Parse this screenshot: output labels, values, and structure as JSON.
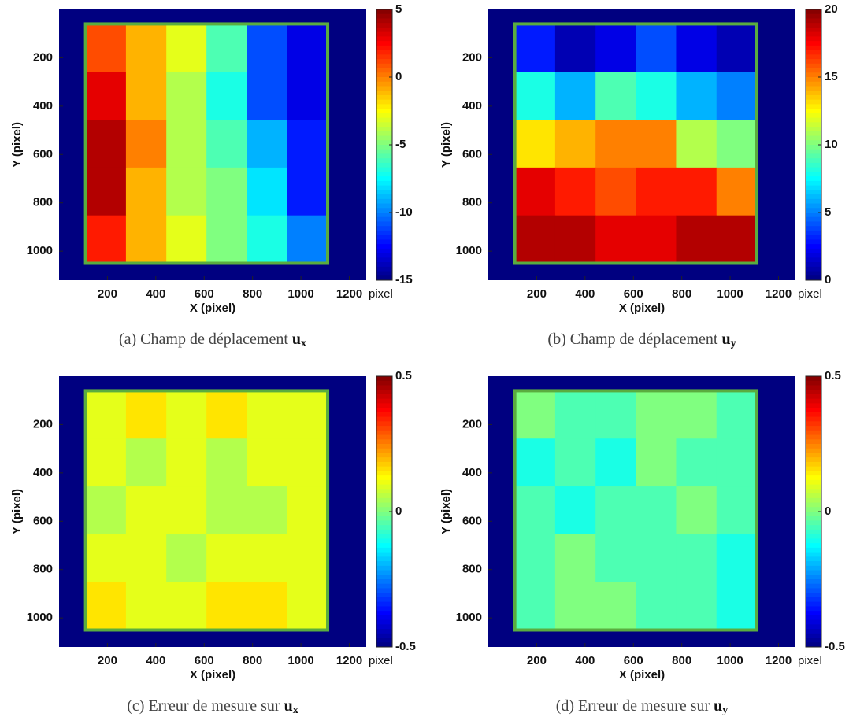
{
  "chart_data": [
    {
      "type": "heatmap",
      "xlabel": "X (pixel)",
      "ylabel": "Y (pixel)",
      "xlim": [
        0,
        1270
      ],
      "ylim": [
        0,
        1120
      ],
      "y_inverted": true,
      "xticks": [
        200,
        400,
        600,
        800,
        1000,
        1200
      ],
      "yticks": [
        200,
        400,
        600,
        800,
        1000
      ],
      "x": [
        193,
        360,
        527,
        693,
        860,
        1027
      ],
      "y": [
        159,
        357,
        555,
        753,
        951
      ],
      "values": [
        [
          1,
          -1,
          -3,
          -6,
          -11,
          -13
        ],
        [
          3,
          -1,
          -4,
          -7,
          -11,
          -13
        ],
        [
          4,
          0,
          -4,
          -6,
          -9,
          -12
        ],
        [
          4,
          -1,
          -4,
          -5,
          -8,
          -12
        ],
        [
          2,
          -1,
          -3,
          -5,
          -7,
          -10
        ]
      ],
      "clim": [
        -15,
        5
      ],
      "cticks": [
        5,
        0,
        -5,
        -10,
        -15
      ],
      "colorbar_label": "pixel",
      "colormap": "jet",
      "caption": "(a) Champ de déplacement",
      "symbol": "u",
      "subscript": "x"
    },
    {
      "type": "heatmap",
      "xlabel": "X (pixel)",
      "ylabel": "Y (pixel)",
      "xlim": [
        0,
        1270
      ],
      "ylim": [
        0,
        1120
      ],
      "y_inverted": true,
      "xticks": [
        200,
        400,
        600,
        800,
        1000,
        1200
      ],
      "yticks": [
        200,
        400,
        600,
        800,
        1000
      ],
      "x": [
        193,
        360,
        527,
        693,
        860,
        1027
      ],
      "y": [
        159,
        357,
        555,
        753,
        951
      ],
      "values": [
        [
          3,
          1,
          2,
          4,
          2,
          1
        ],
        [
          8,
          6,
          9,
          8,
          6,
          5
        ],
        [
          13,
          14,
          15,
          15,
          11,
          10
        ],
        [
          18,
          17,
          16,
          17,
          17,
          15
        ],
        [
          19,
          19,
          18,
          18,
          19,
          19
        ]
      ],
      "clim": [
        0,
        20
      ],
      "cticks": [
        20,
        15,
        10,
        5,
        0
      ],
      "colorbar_label": "pixel",
      "colormap": "jet",
      "caption": "(b) Champ de déplacement",
      "symbol": "u",
      "subscript": "y"
    },
    {
      "type": "heatmap",
      "xlabel": "X (pixel)",
      "ylabel": "Y (pixel)",
      "xlim": [
        0,
        1270
      ],
      "ylim": [
        0,
        1120
      ],
      "y_inverted": true,
      "xticks": [
        200,
        400,
        600,
        800,
        1000,
        1200
      ],
      "yticks": [
        200,
        400,
        600,
        800,
        1000
      ],
      "x": [
        193,
        360,
        527,
        693,
        860,
        1027
      ],
      "y": [
        159,
        357,
        555,
        753,
        951
      ],
      "values": [
        [
          0.1,
          0.15,
          0.1,
          0.15,
          0.1,
          0.1
        ],
        [
          0.1,
          0.05,
          0.1,
          0.05,
          0.1,
          0.1
        ],
        [
          0.05,
          0.1,
          0.1,
          0.05,
          0.05,
          0.1
        ],
        [
          0.1,
          0.1,
          0.05,
          0.1,
          0.1,
          0.1
        ],
        [
          0.15,
          0.1,
          0.1,
          0.15,
          0.15,
          0.1
        ]
      ],
      "clim": [
        -0.5,
        0.5
      ],
      "cticks": [
        0.5,
        0,
        -0.5
      ],
      "colorbar_label": "pixel",
      "colormap": "jet",
      "caption": "(c) Erreur de mesure sur",
      "symbol": "u",
      "subscript": "x"
    },
    {
      "type": "heatmap",
      "xlabel": "X (pixel)",
      "ylabel": "Y (pixel)",
      "xlim": [
        0,
        1270
      ],
      "ylim": [
        0,
        1120
      ],
      "y_inverted": true,
      "xticks": [
        200,
        400,
        600,
        800,
        1000,
        1200
      ],
      "yticks": [
        200,
        400,
        600,
        800,
        1000
      ],
      "x": [
        193,
        360,
        527,
        693,
        860,
        1027
      ],
      "y": [
        159,
        357,
        555,
        753,
        951
      ],
      "values": [
        [
          0,
          -0.05,
          -0.05,
          0,
          0,
          -0.05
        ],
        [
          -0.1,
          -0.05,
          -0.1,
          0,
          -0.05,
          -0.05
        ],
        [
          -0.05,
          -0.1,
          -0.05,
          -0.05,
          0,
          -0.05
        ],
        [
          -0.05,
          0,
          -0.05,
          -0.05,
          -0.05,
          -0.1
        ],
        [
          -0.05,
          0,
          0,
          -0.05,
          -0.05,
          -0.1
        ]
      ],
      "clim": [
        -0.5,
        0.5
      ],
      "cticks": [
        0.5,
        0,
        -0.5
      ],
      "colorbar_label": "pixel",
      "colormap": "jet",
      "caption": "(d) Erreur de mesure sur",
      "symbol": "u",
      "subscript": "y"
    }
  ]
}
